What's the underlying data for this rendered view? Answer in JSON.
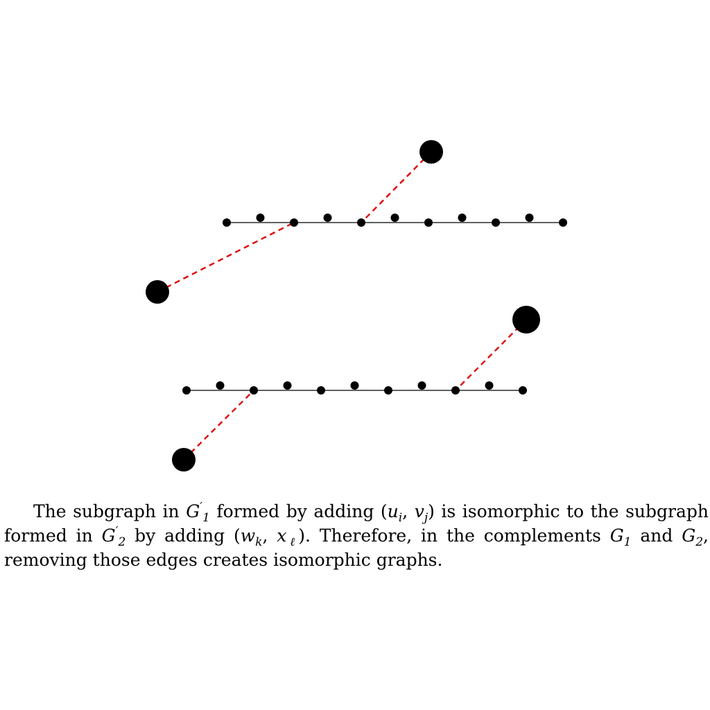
{
  "diagram": {
    "edge_color": "#000000",
    "added_edge_color": "#e00000",
    "node_color": "#000000"
  },
  "caption": {
    "line1": {
      "t1": "The subgraph in ",
      "G1": "G",
      "G1_prime": "′",
      "G1_sub": "1",
      "t2": " formed by adding (",
      "u": "u",
      "u_sub": "i",
      "comma1": ", ",
      "v": "v",
      "v_sub": "j",
      "t3": ") is isomorphic to the subgraph"
    },
    "line2": {
      "t1": "formed in ",
      "G2": "G",
      "G2_prime": "′",
      "G2_sub": "2",
      "t2": " by adding (",
      "w": "w",
      "w_sub": "k",
      "comma1": ", ",
      "x": "x",
      "x_sub": "ℓ",
      "t3": ").  Therefore, in the complements ",
      "Ga": "G",
      "Ga_sub": "1",
      "t4": " and ",
      "Gb": "G",
      "Gb_sub": "2",
      "t5": ","
    },
    "line3": {
      "t1": "removing those edges creates isomorphic graphs."
    }
  }
}
